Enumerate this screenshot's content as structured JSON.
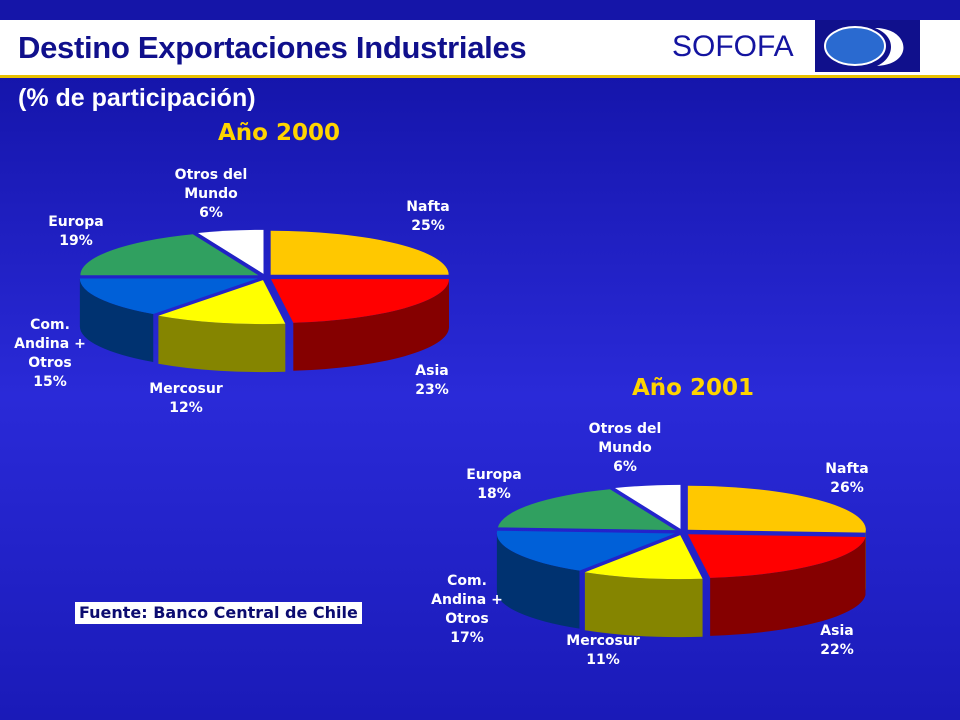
{
  "header": {
    "title": "Destino Exportaciones Industriales",
    "brand": "SOFOFA",
    "subtitle": "(% de participación)"
  },
  "source_note": "Fuente: Banco Central de Chile",
  "colors": {
    "Nafta": "#ffc800",
    "Asia": "#ff0000",
    "Mercosur": "#ffff00",
    "Com. Andina + Otros": "#0060d8",
    "Europa": "#30a060",
    "Otros del Mundo": "#ffffff"
  },
  "chart_data": [
    {
      "type": "pie",
      "title": "Año 2000",
      "slices": [
        {
          "label": "Nafta",
          "value": 25,
          "text": "25%"
        },
        {
          "label": "Asia",
          "value": 23,
          "text": "23%"
        },
        {
          "label": "Mercosur",
          "value": 12,
          "text": "12%"
        },
        {
          "label": "Com. Andina + Otros",
          "value": 15,
          "text": "15%"
        },
        {
          "label": "Europa",
          "value": 19,
          "text": "19%"
        },
        {
          "label": "Otros del Mundo",
          "value": 6,
          "text": "6%"
        }
      ]
    },
    {
      "type": "pie",
      "title": "Año 2001",
      "slices": [
        {
          "label": "Nafta",
          "value": 26,
          "text": "26%"
        },
        {
          "label": "Asia",
          "value": 22,
          "text": "22%"
        },
        {
          "label": "Mercosur",
          "value": 11,
          "text": "11%"
        },
        {
          "label": "Com. Andina + Otros",
          "value": 17,
          "text": "17%"
        },
        {
          "label": "Europa",
          "value": 18,
          "text": "18%"
        },
        {
          "label": "Otros del Mundo",
          "value": 6,
          "text": "6%"
        }
      ]
    }
  ],
  "labels": {
    "nafta": "Nafta",
    "asia": "Asia",
    "mercosur": "Mercosur",
    "andina_1": "Com.",
    "andina_2": "Andina +",
    "andina_3": "Otros",
    "europa": "Europa",
    "otros_1": "Otros del",
    "otros_2": "Mundo"
  }
}
